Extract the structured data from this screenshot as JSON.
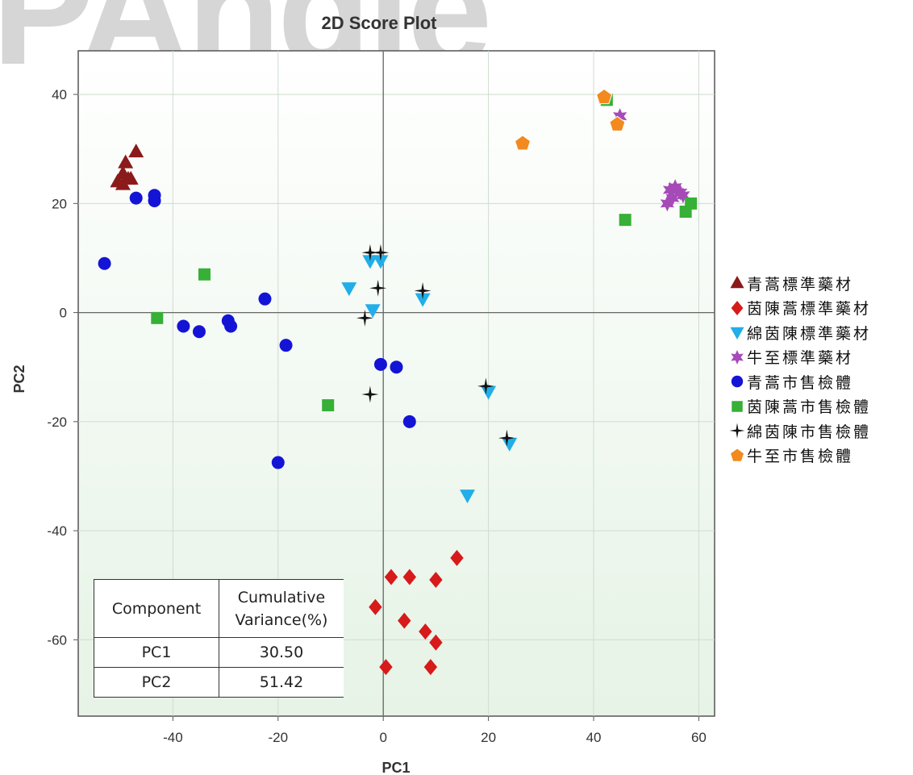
{
  "watermark": "PAngle",
  "chart_data": {
    "type": "scatter",
    "title": "2D Score Plot",
    "xlabel": "PC1",
    "ylabel": "PC2",
    "xlim": [
      -58,
      63
    ],
    "ylim": [
      -74,
      48
    ],
    "xticks": [
      -40,
      -20,
      0,
      20,
      40,
      60
    ],
    "yticks": [
      -60,
      -40,
      -20,
      0,
      20,
      40
    ],
    "grid": true,
    "legend_position": "right",
    "series": [
      {
        "name": "青蒿標準藥材",
        "marker": "triangle-up",
        "color": "#8b1a1a",
        "points": [
          [
            -47,
            29.5
          ],
          [
            -49,
            27.5
          ],
          [
            -49.5,
            25.5
          ],
          [
            -48.5,
            24.5
          ],
          [
            -50.5,
            24
          ],
          [
            -49.5,
            23.5
          ],
          [
            -48,
            24.5
          ]
        ]
      },
      {
        "name": "茵陳蒿標準藥材",
        "marker": "diamond",
        "color": "#d71a1a",
        "points": [
          [
            14,
            -45
          ],
          [
            1.5,
            -48.5
          ],
          [
            5,
            -48.5
          ],
          [
            10,
            -49
          ],
          [
            -1.5,
            -54
          ],
          [
            4,
            -56.5
          ],
          [
            8,
            -58.5
          ],
          [
            10,
            -60.5
          ],
          [
            0.5,
            -65
          ],
          [
            9,
            -65
          ]
        ]
      },
      {
        "name": "綿茵陳標準藥材",
        "marker": "triangle-down",
        "color": "#22aee8",
        "points": [
          [
            -2.5,
            9.5
          ],
          [
            -0.5,
            9.5
          ],
          [
            -6.5,
            4.5
          ],
          [
            -2,
            0.5
          ],
          [
            7.5,
            2.5
          ],
          [
            20,
            -14.5
          ],
          [
            24,
            -24
          ],
          [
            16,
            -33.5
          ]
        ]
      },
      {
        "name": "牛至標準藥材",
        "marker": "star",
        "color": "#a64ab8",
        "points": [
          [
            45,
            36
          ],
          [
            54.5,
            22.5
          ],
          [
            55.5,
            23
          ],
          [
            56.5,
            22
          ],
          [
            54,
            20
          ],
          [
            55,
            21
          ],
          [
            57,
            21.5
          ]
        ]
      },
      {
        "name": "青蒿市售檢體",
        "marker": "circle",
        "color": "#1414d6",
        "points": [
          [
            -47,
            21
          ],
          [
            -43.5,
            21.5
          ],
          [
            -43.5,
            20.5
          ],
          [
            -53,
            9
          ],
          [
            -22.5,
            2.5
          ],
          [
            -38,
            -2.5
          ],
          [
            -35,
            -3.5
          ],
          [
            -29.5,
            -1.5
          ],
          [
            -29,
            -2.5
          ],
          [
            -18.5,
            -6
          ],
          [
            -0.5,
            -9.5
          ],
          [
            2.5,
            -10
          ],
          [
            5,
            -20
          ],
          [
            -20,
            -27.5
          ]
        ]
      },
      {
        "name": "茵陳蒿市售檢體",
        "marker": "square",
        "color": "#36b036",
        "points": [
          [
            42.5,
            39
          ],
          [
            46,
            17
          ],
          [
            57.5,
            18.5
          ],
          [
            58.5,
            20
          ],
          [
            -34,
            7
          ],
          [
            -43,
            -1
          ],
          [
            -10.5,
            -17
          ]
        ]
      },
      {
        "name": "綿茵陳市售檢體",
        "marker": "star4",
        "color": "#111111",
        "points": [
          [
            -2.5,
            11
          ],
          [
            -0.5,
            11
          ],
          [
            -1,
            4.5
          ],
          [
            7.5,
            4
          ],
          [
            -3.5,
            -1
          ],
          [
            -2.5,
            -15
          ],
          [
            19.5,
            -13.5
          ],
          [
            23.5,
            -23
          ]
        ]
      },
      {
        "name": "牛至市售檢體",
        "marker": "pentagon",
        "color": "#f28a1e",
        "points": [
          [
            42,
            39.5
          ],
          [
            44.5,
            34.5
          ],
          [
            26.5,
            31
          ]
        ]
      }
    ]
  },
  "table": {
    "header": [
      "Component",
      "Cumulative Variance(%)"
    ],
    "rows": [
      [
        "PC1",
        "30.50"
      ],
      [
        "PC2",
        "51.42"
      ]
    ]
  }
}
